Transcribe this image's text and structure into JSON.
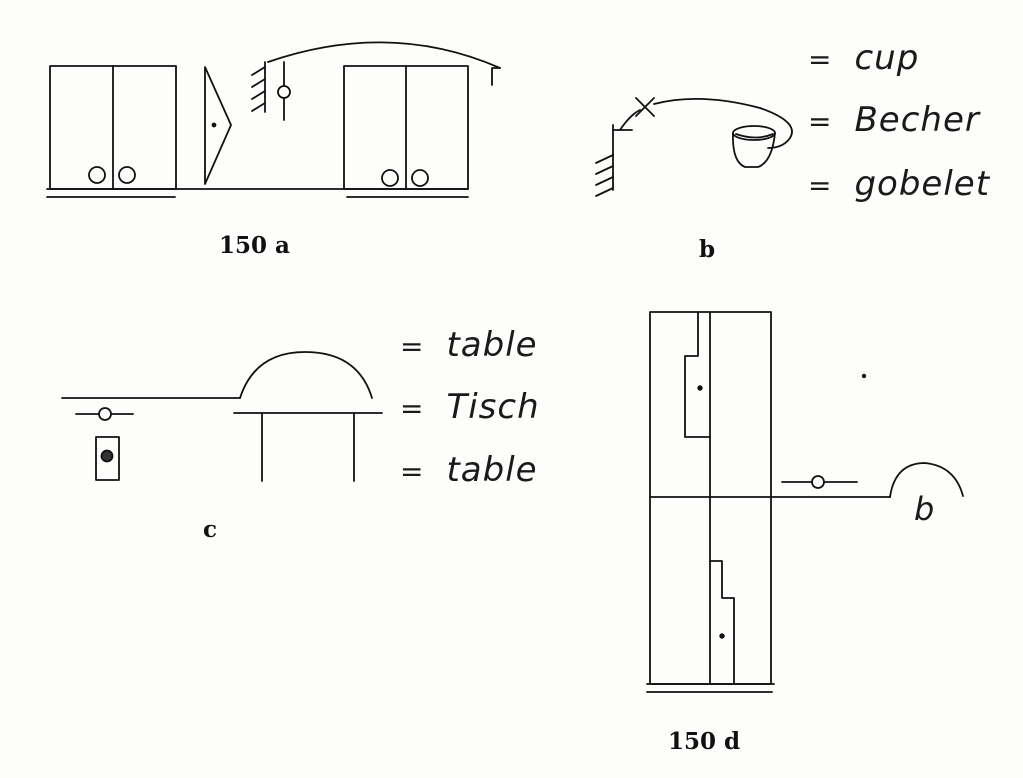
{
  "captions": {
    "fig_a": "150 a",
    "fig_b": "b",
    "fig_c": "c",
    "fig_d": "150 d"
  },
  "translations_b": {
    "equals": "=",
    "english": "cup",
    "german": "Becher",
    "french": "gobelet"
  },
  "translations_c": {
    "equals": "=",
    "english": "table",
    "german": "Tisch",
    "french": "table"
  },
  "fig_d_label": "b"
}
